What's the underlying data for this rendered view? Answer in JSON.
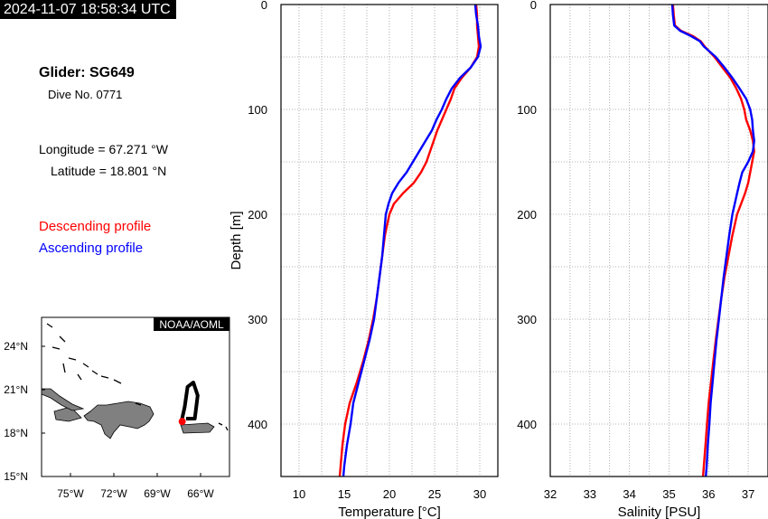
{
  "header": {
    "timestamp": "2024-11-07 18:58:34 UTC"
  },
  "info": {
    "glider": "Glider: SG649",
    "dive": "Dive No. 0771",
    "longitude": "Longitude = 67.271 °W",
    "latitude": "Latitude = 18.801 °N",
    "legend_descending": "Descending profile",
    "legend_ascending": "Ascending profile"
  },
  "colors": {
    "descending": "#ff0000",
    "ascending": "#0000ff",
    "land": "#808080"
  },
  "map": {
    "credit": "NOAA/AOML",
    "lat_ticks": [
      "24°N",
      "21°N",
      "18°N",
      "15°N"
    ],
    "lon_ticks": [
      "75°W",
      "72°W",
      "69°W",
      "66°W"
    ],
    "lon_range": [
      -77,
      -64
    ],
    "lat_range": [
      15,
      26
    ],
    "glider_position": {
      "lon": -67.271,
      "lat": 18.801
    },
    "track": [
      [
        -67.0,
        19.0
      ],
      [
        -66.4,
        19.0
      ],
      [
        -66.2,
        20.6
      ],
      [
        -66.5,
        21.5
      ],
      [
        -66.9,
        21.2
      ],
      [
        -67.1,
        19.8
      ],
      [
        -67.3,
        18.9
      ]
    ]
  },
  "chart_data": [
    {
      "type": "line",
      "xlabel": "Temperature [°C]",
      "ylabel": "Depth [m]",
      "xlim": [
        8,
        32
      ],
      "ylim": [
        450,
        0
      ],
      "x_ticks": [
        10,
        15,
        20,
        25,
        30
      ],
      "y_ticks": [
        0,
        100,
        200,
        300,
        400
      ],
      "grid": true,
      "series": [
        {
          "name": "Descending profile",
          "depth": [
            0,
            10,
            20,
            30,
            40,
            50,
            60,
            70,
            80,
            90,
            100,
            110,
            120,
            130,
            140,
            150,
            160,
            170,
            180,
            190,
            200,
            220,
            240,
            260,
            280,
            300,
            320,
            340,
            360,
            380,
            400,
            420,
            440,
            450
          ],
          "values": [
            29.6,
            29.7,
            29.7,
            29.8,
            29.9,
            29.7,
            29.0,
            28.0,
            27.2,
            26.8,
            26.3,
            25.8,
            25.3,
            24.9,
            24.5,
            24.1,
            23.5,
            22.7,
            21.5,
            20.5,
            20.0,
            19.5,
            19.2,
            18.9,
            18.6,
            18.2,
            17.7,
            17.1,
            16.4,
            15.6,
            15.1,
            14.8,
            14.6,
            14.5
          ]
        },
        {
          "name": "Ascending profile",
          "depth": [
            0,
            10,
            20,
            30,
            40,
            50,
            60,
            70,
            80,
            90,
            100,
            110,
            120,
            130,
            140,
            150,
            160,
            170,
            180,
            190,
            200,
            220,
            240,
            260,
            280,
            300,
            320,
            340,
            360,
            380,
            400,
            420,
            440,
            450
          ],
          "values": [
            29.5,
            29.6,
            29.8,
            29.9,
            30.1,
            29.8,
            29.0,
            27.8,
            26.9,
            26.3,
            25.8,
            25.2,
            24.7,
            24.0,
            23.3,
            22.6,
            21.9,
            21.0,
            20.3,
            19.9,
            19.6,
            19.4,
            19.2,
            18.9,
            18.6,
            18.3,
            17.8,
            17.2,
            16.6,
            16.0,
            15.7,
            15.3,
            15.0,
            14.9
          ]
        }
      ]
    },
    {
      "type": "line",
      "xlabel": "Salinity [PSU]",
      "ylabel": "",
      "xlim": [
        32,
        37.5
      ],
      "ylim": [
        450,
        0
      ],
      "x_ticks": [
        32,
        33,
        34,
        35,
        36,
        37
      ],
      "y_ticks": [
        0,
        100,
        200,
        300,
        400
      ],
      "grid": true,
      "series": [
        {
          "name": "Descending profile",
          "depth": [
            0,
            10,
            20,
            25,
            30,
            35,
            40,
            50,
            60,
            70,
            80,
            90,
            100,
            110,
            120,
            130,
            140,
            150,
            160,
            170,
            180,
            190,
            200,
            220,
            240,
            260,
            280,
            300,
            320,
            340,
            360,
            380,
            400,
            420,
            440,
            450
          ],
          "values": [
            35.1,
            35.12,
            35.15,
            35.3,
            35.6,
            35.8,
            35.9,
            36.15,
            36.35,
            36.55,
            36.7,
            36.82,
            36.9,
            36.95,
            37.05,
            37.12,
            37.15,
            37.1,
            37.05,
            37.0,
            36.92,
            36.82,
            36.72,
            36.6,
            36.5,
            36.4,
            36.32,
            36.25,
            36.18,
            36.12,
            36.06,
            36.0,
            35.96,
            35.92,
            35.88,
            35.86
          ]
        },
        {
          "name": "Ascending profile",
          "depth": [
            0,
            10,
            20,
            25,
            30,
            35,
            40,
            50,
            60,
            70,
            80,
            90,
            100,
            110,
            120,
            130,
            140,
            150,
            160,
            170,
            180,
            190,
            200,
            220,
            240,
            260,
            280,
            300,
            320,
            340,
            360,
            380,
            400,
            420,
            440,
            450
          ],
          "values": [
            35.08,
            35.1,
            35.13,
            35.28,
            35.55,
            35.78,
            35.88,
            36.18,
            36.4,
            36.6,
            36.78,
            36.95,
            37.05,
            37.1,
            37.12,
            37.15,
            37.12,
            37.0,
            36.85,
            36.78,
            36.72,
            36.66,
            36.6,
            36.52,
            36.45,
            36.38,
            36.32,
            36.26,
            36.2,
            36.15,
            36.1,
            36.05,
            36.02,
            35.98,
            35.95,
            35.93
          ]
        }
      ]
    }
  ]
}
